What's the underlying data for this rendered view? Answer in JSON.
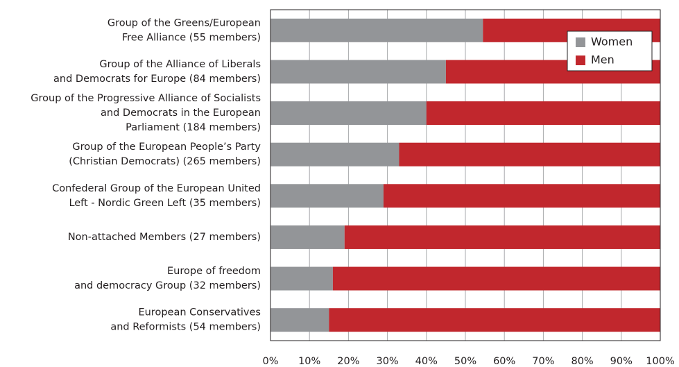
{
  "chart_data": {
    "type": "stacked_barh",
    "categories": [
      [
        "Group of the Greens/European",
        "Free Alliance (55 members)"
      ],
      [
        "Group of the Alliance of Liberals",
        "and Democrats for Europe (84 members)"
      ],
      [
        "Group of the Progressive Alliance of Socialists",
        "and Democrats in the European",
        "Parliament (184 members)"
      ],
      [
        "Group of the European People’s Party",
        "(Christian Democrats) (265 members)"
      ],
      [
        "Confederal Group of the European United",
        "Left - Nordic Green Left (35 members)"
      ],
      [
        "Non-attached Members (27 members)"
      ],
      [
        "Europe of freedom",
        "and democracy Group (32 members)"
      ],
      [
        "European Conservatives",
        "and Reformists (54 members)"
      ]
    ],
    "series": [
      {
        "name": "Women",
        "color": "#939598",
        "values": [
          54.5,
          45,
          40,
          33,
          29,
          19,
          16,
          15
        ]
      },
      {
        "name": "Men",
        "color": "#c1272d",
        "values": [
          45.5,
          55,
          60,
          67,
          71,
          81,
          84,
          85
        ]
      }
    ],
    "xlim": [
      0,
      100
    ],
    "xticks": [
      {
        "value": 0,
        "label": "0%"
      },
      {
        "value": 10,
        "label": "10%"
      },
      {
        "value": 20,
        "label": "20%"
      },
      {
        "value": 30,
        "label": "30%"
      },
      {
        "value": 40,
        "label": "40%"
      },
      {
        "value": 50,
        "label": "50%"
      },
      {
        "value": 60,
        "label": "60%"
      },
      {
        "value": 70,
        "label": "70%"
      },
      {
        "value": 80,
        "label": "80%"
      },
      {
        "value": 90,
        "label": "90%"
      },
      {
        "value": 100,
        "label": "100%"
      }
    ],
    "grid": true,
    "legend": "upper right"
  }
}
